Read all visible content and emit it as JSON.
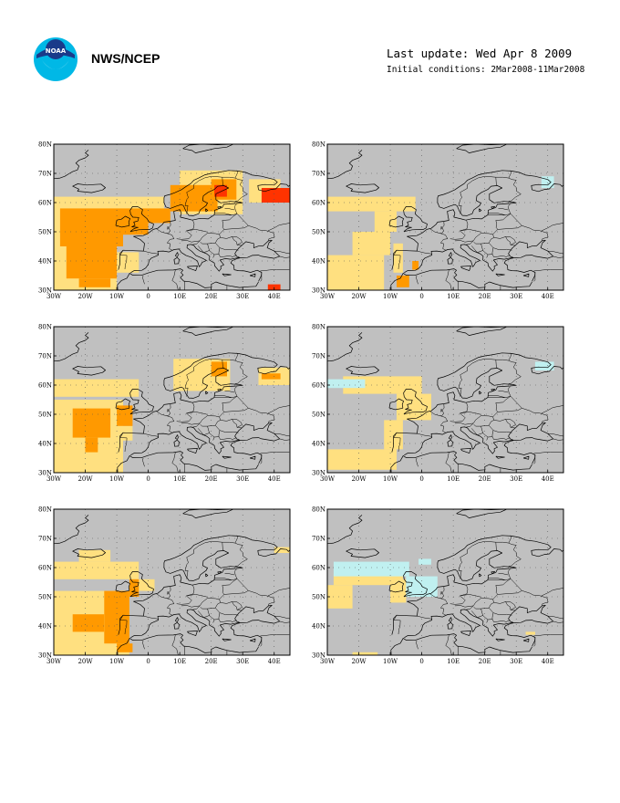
{
  "header": {
    "logo_icon": "noaa-logo-icon",
    "agency": "NWS/NCEP",
    "last_update": "Last update: Wed Apr 8 2009",
    "initial_conditions": "Initial conditions: 2Mar2008-11Mar2008"
  },
  "map": {
    "region": "Europe and North Atlantic",
    "lon_range": [
      -30,
      45
    ],
    "lat_range": [
      30,
      80
    ],
    "lon_ticks": [
      "30W",
      "20W",
      "10W",
      "0",
      "10E",
      "20E",
      "30E",
      "40E"
    ],
    "lat_ticks": [
      "30N",
      "40N",
      "50N",
      "60N",
      "70N",
      "80N"
    ],
    "colors": {
      "background_ocean_land": "#c0c0c0",
      "light_yellow": "#ffe080",
      "orange": "#ff9900",
      "red": "#ff3300",
      "light_blue": "#c0f0f0"
    }
  },
  "panels": [
    {
      "id": "top-left",
      "shading": [
        "light_yellow",
        "orange",
        "red"
      ]
    },
    {
      "id": "top-right",
      "shading": [
        "light_yellow",
        "orange",
        "light_blue"
      ]
    },
    {
      "id": "middle-left",
      "shading": [
        "light_yellow",
        "orange"
      ]
    },
    {
      "id": "middle-right",
      "shading": [
        "light_yellow",
        "light_blue"
      ]
    },
    {
      "id": "bottom-left",
      "shading": [
        "light_yellow",
        "orange"
      ]
    },
    {
      "id": "bottom-right",
      "shading": [
        "light_yellow",
        "light_blue"
      ]
    }
  ]
}
